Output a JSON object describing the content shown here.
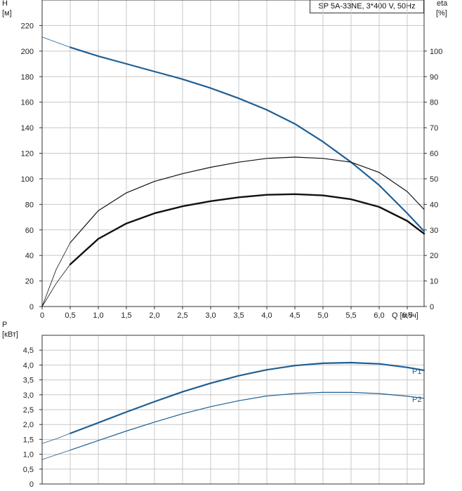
{
  "title": "SP 5A-33NE, 3*400 V, 50Hz",
  "colors": {
    "blue": "#1f5f93",
    "black": "#111111",
    "grid": "#c8c8c8",
    "axis": "#333333"
  },
  "chart_data": [
    {
      "type": "line",
      "y_label": "H",
      "y_unit": "[м]",
      "y2_label": "eta",
      "y2_unit": "[%]",
      "x_unit": "Q [м³/ч]",
      "xlim": [
        0,
        6.8
      ],
      "ylim": [
        0,
        240
      ],
      "y2lim": [
        0,
        120
      ],
      "x_ticks": [
        "0",
        "0,5",
        "1,0",
        "1,5",
        "2,0",
        "2,5",
        "3,0",
        "3,5",
        "4,0",
        "4,5",
        "5,0",
        "5,5",
        "6,0",
        "6,5"
      ],
      "x_tick_values": [
        0,
        0.5,
        1.0,
        1.5,
        2.0,
        2.5,
        3.0,
        3.5,
        4.0,
        4.5,
        5.0,
        5.5,
        6.0,
        6.5
      ],
      "y_ticks": [
        "0",
        "20",
        "40",
        "60",
        "80",
        "100",
        "120",
        "140",
        "160",
        "180",
        "200",
        "220"
      ],
      "y_tick_values": [
        0,
        20,
        40,
        60,
        80,
        100,
        120,
        140,
        160,
        180,
        200,
        220
      ],
      "y2_ticks": [
        "0",
        "10",
        "20",
        "30",
        "40",
        "50",
        "60",
        "70",
        "80",
        "90",
        "100"
      ],
      "y2_tick_values": [
        0,
        10,
        20,
        30,
        40,
        50,
        60,
        70,
        80,
        90,
        100
      ],
      "grid": true,
      "series": [
        {
          "axis": "left",
          "color": "#1f5f93",
          "width": 2.2,
          "x": [
            0.5,
            1.0,
            1.5,
            2.0,
            2.5,
            3.0,
            3.5,
            4.0,
            4.5,
            5.0,
            5.5,
            6.0,
            6.5,
            6.8
          ],
          "y": [
            203,
            196,
            190,
            184,
            178,
            171,
            163,
            154,
            143,
            129,
            113,
            95,
            73,
            59
          ]
        },
        {
          "axis": "left",
          "color": "#1f5f93",
          "width": 0.8,
          "x": [
            0,
            0.25,
            0.5
          ],
          "y": [
            211,
            207,
            203
          ]
        },
        {
          "axis": "left",
          "color": "#111111",
          "width": 1.2,
          "x": [
            0.5,
            1.0,
            1.5,
            2.0,
            2.5,
            3.0,
            3.5,
            4.0,
            4.5,
            5.0,
            5.5,
            6.0,
            6.5,
            6.8
          ],
          "y": [
            50,
            75,
            89,
            98,
            104,
            109,
            113,
            116,
            117,
            116,
            113,
            105,
            90,
            76
          ]
        },
        {
          "axis": "left",
          "color": "#111111",
          "width": 0.8,
          "x": [
            0,
            0.25,
            0.5
          ],
          "y": [
            0,
            29,
            50
          ]
        },
        {
          "axis": "left",
          "color": "#111111",
          "width": 2.4,
          "x": [
            0.5,
            1.0,
            1.5,
            2.0,
            2.5,
            3.0,
            3.5,
            4.0,
            4.5,
            5.0,
            5.5,
            6.0,
            6.5,
            6.8
          ],
          "y": [
            33,
            53,
            65,
            73,
            78.5,
            82.5,
            85.5,
            87.5,
            88,
            87,
            84,
            78,
            67,
            57
          ]
        },
        {
          "axis": "left",
          "color": "#111111",
          "width": 0.8,
          "x": [
            0,
            0.25,
            0.5
          ],
          "y": [
            0,
            18,
            33
          ]
        }
      ]
    },
    {
      "type": "line",
      "y_label": "P",
      "y_unit": "[кВт]",
      "xlim": [
        0,
        6.8
      ],
      "ylim": [
        0,
        5.0
      ],
      "y_ticks": [
        "0",
        "0,5",
        "1,0",
        "1,5",
        "2,0",
        "2,5",
        "3,0",
        "3,5",
        "4,0",
        "4,5"
      ],
      "y_tick_values": [
        0,
        0.5,
        1.0,
        1.5,
        2.0,
        2.5,
        3.0,
        3.5,
        4.0,
        4.5
      ],
      "grid": true,
      "series": [
        {
          "name": "P1",
          "color": "#1f5f93",
          "width": 2.2,
          "x": [
            0.5,
            1.0,
            1.5,
            2.0,
            2.5,
            3.0,
            3.5,
            4.0,
            4.5,
            5.0,
            5.5,
            6.0,
            6.5,
            6.8
          ],
          "y": [
            1.7,
            2.06,
            2.42,
            2.77,
            3.1,
            3.39,
            3.64,
            3.84,
            3.98,
            4.06,
            4.08,
            4.04,
            3.92,
            3.82
          ]
        },
        {
          "color": "#1f5f93",
          "width": 0.8,
          "x": [
            0,
            0.25,
            0.5
          ],
          "y": [
            1.36,
            1.52,
            1.7
          ]
        },
        {
          "name": "P2",
          "color": "#1f5f93",
          "width": 1.2,
          "x": [
            0.5,
            1.0,
            1.5,
            2.0,
            2.5,
            3.0,
            3.5,
            4.0,
            4.5,
            5.0,
            5.5,
            6.0,
            6.5,
            6.8
          ],
          "y": [
            1.14,
            1.46,
            1.78,
            2.08,
            2.36,
            2.6,
            2.8,
            2.96,
            3.04,
            3.08,
            3.08,
            3.04,
            2.95,
            2.88
          ]
        },
        {
          "color": "#1f5f93",
          "width": 0.8,
          "x": [
            0,
            0.25,
            0.5
          ],
          "y": [
            0.82,
            0.98,
            1.14
          ]
        }
      ]
    }
  ]
}
